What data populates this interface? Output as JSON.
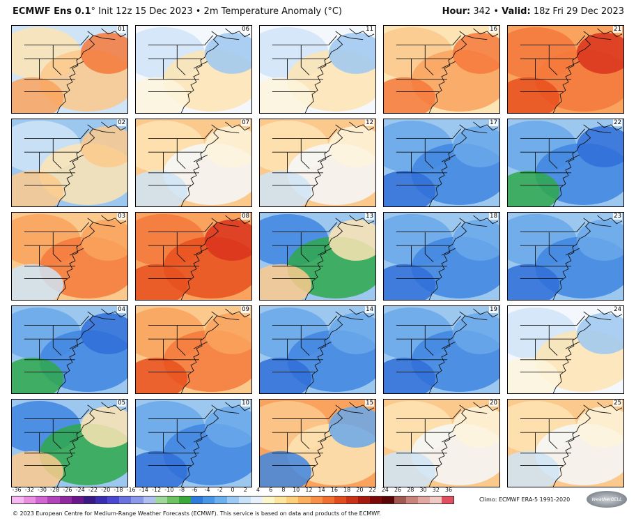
{
  "header": {
    "model": "ECMWF Ens 0.1",
    "degree": "°",
    "init": " Init 12z 15 Dec 2023 • 2m Temperature Anomaly (°C)",
    "hour_label": "Hour:",
    "hour": " 342 • ",
    "valid_label": "Valid:",
    "valid": " 18z Fri 29 Dec 2023"
  },
  "members": [
    {
      "id": "01",
      "anomaly": "warm",
      "level": 2,
      "pattern": "se-warm"
    },
    {
      "id": "06",
      "anomaly": "neutral-cool",
      "level": 1,
      "pattern": "mixed"
    },
    {
      "id": "11",
      "anomaly": "neutral",
      "level": 1,
      "pattern": "mixed"
    },
    {
      "id": "16",
      "anomaly": "warm",
      "level": 2,
      "pattern": "e-warm"
    },
    {
      "id": "21",
      "anomaly": "warm",
      "level": 3,
      "pattern": "se-hot"
    },
    {
      "id": "02",
      "anomaly": "cool",
      "level": 1,
      "pattern": "w-cool"
    },
    {
      "id": "07",
      "anomaly": "warm",
      "level": 1,
      "pattern": "w-warm"
    },
    {
      "id": "12",
      "anomaly": "warm",
      "level": 1,
      "pattern": "w-warm"
    },
    {
      "id": "17",
      "anomaly": "cold",
      "level": 2,
      "pattern": "cold"
    },
    {
      "id": "22",
      "anomaly": "cold",
      "level": 2,
      "pattern": "cold-green"
    },
    {
      "id": "03",
      "anomaly": "warm",
      "level": 2,
      "pattern": "warm"
    },
    {
      "id": "08",
      "anomaly": "warm",
      "level": 3,
      "pattern": "hot"
    },
    {
      "id": "13",
      "anomaly": "mixed",
      "level": 2,
      "pattern": "sw-green-e-warm"
    },
    {
      "id": "18",
      "anomaly": "cold",
      "level": 1,
      "pattern": "cold"
    },
    {
      "id": "23",
      "anomaly": "cold",
      "level": 2,
      "pattern": "cold"
    },
    {
      "id": "04",
      "anomaly": "cold",
      "level": 2,
      "pattern": "cold-green"
    },
    {
      "id": "09",
      "anomaly": "warm",
      "level": 2,
      "pattern": "ne-hot"
    },
    {
      "id": "14",
      "anomaly": "cold",
      "level": 2,
      "pattern": "cold"
    },
    {
      "id": "19",
      "anomaly": "cold",
      "level": 2,
      "pattern": "cold"
    },
    {
      "id": "24",
      "anomaly": "neutral",
      "level": 1,
      "pattern": "mixed"
    },
    {
      "id": "05",
      "anomaly": "cold",
      "level": 2,
      "pattern": "sw-green-e-warm"
    },
    {
      "id": "10",
      "anomaly": "cold",
      "level": 1,
      "pattern": "cold"
    },
    {
      "id": "15",
      "anomaly": "warm",
      "level": 2,
      "pattern": "n-warm-sw-cold"
    },
    {
      "id": "20",
      "anomaly": "warm",
      "level": 1,
      "pattern": "w-warm"
    },
    {
      "id": "25",
      "anomaly": "warm",
      "level": 1,
      "pattern": "w-warm"
    }
  ],
  "colorbar": {
    "ticks": [
      "-36",
      "-32",
      "-30",
      "-28",
      "-26",
      "-24",
      "-22",
      "-20",
      "-18",
      "-16",
      "-14",
      "-12",
      "-10",
      "-8",
      "-6",
      "-4",
      "-2",
      "0",
      "2",
      "4",
      "6",
      "8",
      "10",
      "12",
      "14",
      "16",
      "18",
      "20",
      "22",
      "24",
      "26",
      "28",
      "30",
      "32",
      "36"
    ],
    "colors": [
      "#f5b8f0",
      "#ea8ee0",
      "#d066cf",
      "#b145b8",
      "#8e2a9e",
      "#6a178a",
      "#3a1a82",
      "#3b2db0",
      "#4a48d0",
      "#6a72e0",
      "#8c98ea",
      "#b0bff0",
      "#9fd89a",
      "#6ec262",
      "#3aa83a",
      "#2e7bdc",
      "#4a96e6",
      "#6cb0ee",
      "#9ccaf4",
      "#c8e2f8",
      "#e6f1fb",
      "#fbf6cc",
      "#fde7a0",
      "#fdd07e",
      "#fbb060",
      "#f79048",
      "#ef7030",
      "#e04e1e",
      "#c83218",
      "#a41a10",
      "#7a0a0a",
      "#5a0606",
      "#a05a50",
      "#c8847a",
      "#e0a8a0",
      "#f0c8c4",
      "#e05060"
    ]
  },
  "climo": "Climo: ECMWF ERA-5 1991-2020",
  "logo": "WeatherBELL",
  "footer": "© 2023 European Centre for Medium-Range Weather Forecasts (ECMWF). This service is based on data and products of the ECMWF."
}
